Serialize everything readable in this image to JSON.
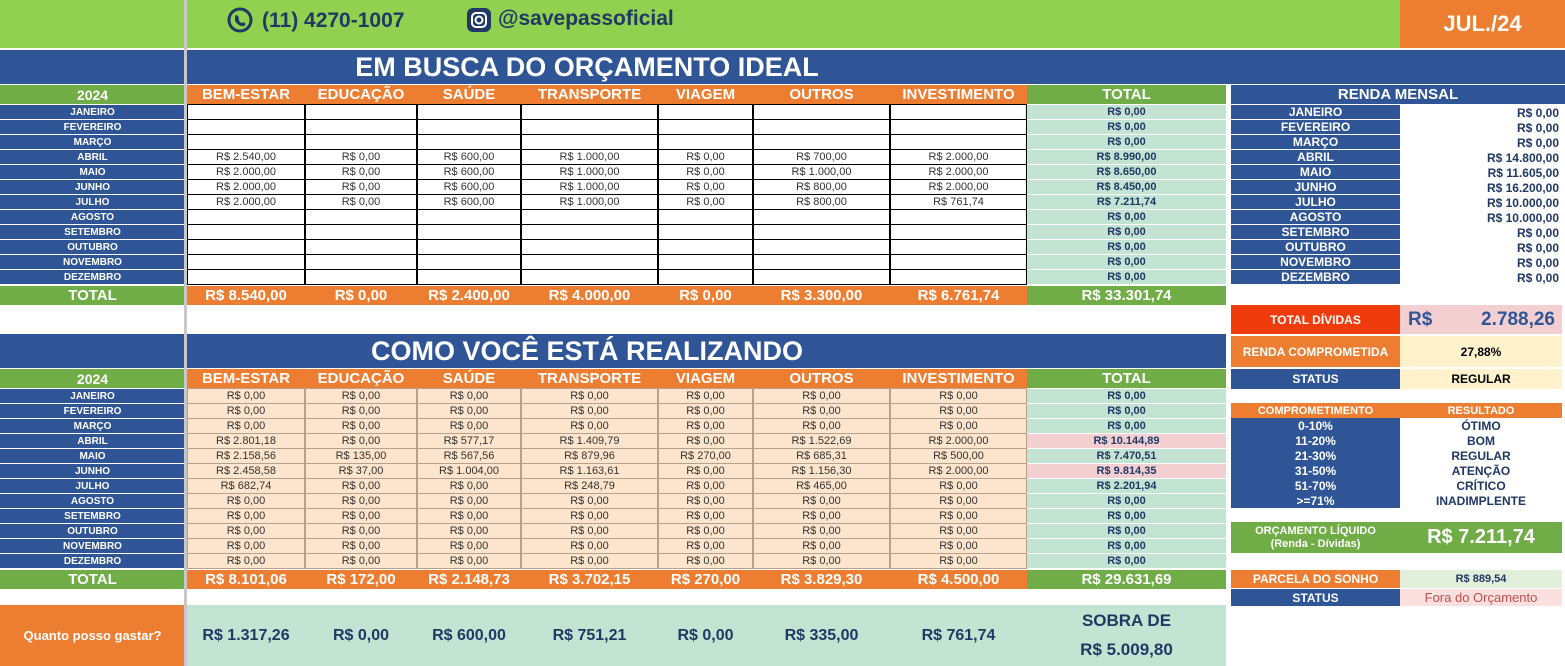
{
  "header": {
    "phone": "(11) 4270-1007",
    "instagram": "@savepassoficial",
    "period": "JUL./24"
  },
  "months": [
    "JANEIRO",
    "FEVEREIRO",
    "MARÇO",
    "ABRIL",
    "MAIO",
    "JUNHO",
    "JULHO",
    "AGOSTO",
    "SETEMBRO",
    "OUTUBRO",
    "NOVEMBRO",
    "DEZEMBRO"
  ],
  "categories": [
    "BEM-ESTAR",
    "EDUCAÇÃO",
    "SAÚDE",
    "TRANSPORTE",
    "VIAGEM",
    "OUTROS",
    "INVESTIMENTO"
  ],
  "year": "2024",
  "total_label": "TOTAL",
  "planned": {
    "title": "EM BUSCA DO ORÇAMENTO IDEAL",
    "rows": [
      {
        "values": [],
        "total": "R$ 0,00"
      },
      {
        "values": [],
        "total": "R$ 0,00"
      },
      {
        "values": [],
        "total": "R$ 0,00"
      },
      {
        "values": [
          "R$ 2.540,00",
          "R$ 0,00",
          "R$ 600,00",
          "R$ 1.000,00",
          "R$ 0,00",
          "R$ 700,00",
          "R$ 2.000,00"
        ],
        "total": "R$ 8.990,00"
      },
      {
        "values": [
          "R$ 2.000,00",
          "R$ 0,00",
          "R$ 600,00",
          "R$ 1.000,00",
          "R$ 0,00",
          "R$ 1.000,00",
          "R$ 2.000,00"
        ],
        "total": "R$ 8.650,00"
      },
      {
        "values": [
          "R$ 2.000,00",
          "R$ 0,00",
          "R$ 600,00",
          "R$ 1.000,00",
          "R$ 0,00",
          "R$ 800,00",
          "R$ 2.000,00"
        ],
        "total": "R$ 8.450,00"
      },
      {
        "values": [
          "R$ 2.000,00",
          "R$ 0,00",
          "R$ 600,00",
          "R$ 1.000,00",
          "R$ 0,00",
          "R$ 800,00",
          "R$ 761,74"
        ],
        "total": "R$ 7.211,74"
      },
      {
        "values": [],
        "total": "R$ 0,00"
      },
      {
        "values": [],
        "total": "R$ 0,00"
      },
      {
        "values": [],
        "total": "R$ 0,00"
      },
      {
        "values": [],
        "total": "R$ 0,00"
      },
      {
        "values": [],
        "total": "R$ 0,00"
      }
    ],
    "totals": [
      "R$ 8.540,00",
      "R$ 0,00",
      "R$ 2.400,00",
      "R$ 4.000,00",
      "R$ 0,00",
      "R$ 3.300,00",
      "R$ 6.761,74"
    ],
    "grand_total": "R$ 33.301,74"
  },
  "actual": {
    "title": "COMO VOCÊ ESTÁ REALIZANDO",
    "rows": [
      {
        "values": [
          "R$ 0,00",
          "R$ 0,00",
          "R$ 0,00",
          "R$ 0,00",
          "R$ 0,00",
          "R$ 0,00",
          "R$ 0,00"
        ],
        "total": "R$ 0,00"
      },
      {
        "values": [
          "R$ 0,00",
          "R$ 0,00",
          "R$ 0,00",
          "R$ 0,00",
          "R$ 0,00",
          "R$ 0,00",
          "R$ 0,00"
        ],
        "total": "R$ 0,00"
      },
      {
        "values": [
          "R$ 0,00",
          "R$ 0,00",
          "R$ 0,00",
          "R$ 0,00",
          "R$ 0,00",
          "R$ 0,00",
          "R$ 0,00"
        ],
        "total": "R$ 0,00"
      },
      {
        "values": [
          "R$ 2.801,18",
          "R$ 0,00",
          "R$ 577,17",
          "R$ 1.409,79",
          "R$ 0,00",
          "R$ 1.522,69",
          "R$ 2.000,00"
        ],
        "total": "R$ 10.144,89"
      },
      {
        "values": [
          "R$ 2.158,56",
          "R$ 135,00",
          "R$ 567,56",
          "R$ 879,96",
          "R$ 270,00",
          "R$ 685,31",
          "R$ 500,00"
        ],
        "total": "R$ 7.470,51"
      },
      {
        "values": [
          "R$ 2.458,58",
          "R$ 37,00",
          "R$ 1.004,00",
          "R$ 1.163,61",
          "R$ 0,00",
          "R$ 1.156,30",
          "R$ 2.000,00"
        ],
        "total": "R$ 9.814,35"
      },
      {
        "values": [
          "R$ 682,74",
          "R$ 0,00",
          "R$ 0,00",
          "R$ 248,79",
          "R$ 0,00",
          "R$ 465,00",
          "R$ 0,00"
        ],
        "total": "R$ 2.201,94"
      },
      {
        "values": [
          "R$ 0,00",
          "R$ 0,00",
          "R$ 0,00",
          "R$ 0,00",
          "R$ 0,00",
          "R$ 0,00",
          "R$ 0,00"
        ],
        "total": "R$ 0,00"
      },
      {
        "values": [
          "R$ 0,00",
          "R$ 0,00",
          "R$ 0,00",
          "R$ 0,00",
          "R$ 0,00",
          "R$ 0,00",
          "R$ 0,00"
        ],
        "total": "R$ 0,00"
      },
      {
        "values": [
          "R$ 0,00",
          "R$ 0,00",
          "R$ 0,00",
          "R$ 0,00",
          "R$ 0,00",
          "R$ 0,00",
          "R$ 0,00"
        ],
        "total": "R$ 0,00"
      },
      {
        "values": [
          "R$ 0,00",
          "R$ 0,00",
          "R$ 0,00",
          "R$ 0,00",
          "R$ 0,00",
          "R$ 0,00",
          "R$ 0,00"
        ],
        "total": "R$ 0,00"
      },
      {
        "values": [
          "R$ 0,00",
          "R$ 0,00",
          "R$ 0,00",
          "R$ 0,00",
          "R$ 0,00",
          "R$ 0,00",
          "R$ 0,00"
        ],
        "total": "R$ 0,00"
      }
    ],
    "totals": [
      "R$ 8.101,06",
      "R$ 172,00",
      "R$ 2.148,73",
      "R$ 3.702,15",
      "R$ 270,00",
      "R$ 3.829,30",
      "R$ 4.500,00"
    ],
    "grand_total": "R$ 29.631,69"
  },
  "spending": {
    "label": "Quanto posso gastar?",
    "values": [
      "R$ 1.317,26",
      "R$ 0,00",
      "R$ 600,00",
      "R$ 751,21",
      "R$ 0,00",
      "R$ 335,00",
      "R$ 761,74"
    ],
    "leftover_label": "SOBRA DE",
    "leftover": "R$ 5.009,80"
  },
  "income": {
    "title": "RENDA MENSAL",
    "values": [
      "R$ 0,00",
      "R$ 0,00",
      "R$ 0,00",
      "R$ 14.800,00",
      "R$ 11.605,00",
      "R$ 16.200,00",
      "R$ 10.000,00",
      "R$ 10.000,00",
      "R$ 0,00",
      "R$ 0,00",
      "R$ 0,00",
      "R$ 0,00"
    ]
  },
  "summary": {
    "debts_label": "TOTAL DÍVIDAS",
    "debts_currency": "R$",
    "debts_amount": "2.788,26",
    "committed_label": "RENDA COMPROMETIDA",
    "committed_value": "27,88%",
    "status_label": "STATUS",
    "status_value": "REGULAR"
  },
  "scale": {
    "header": [
      "COMPROMETIMENTO",
      "RESULTADO"
    ],
    "rows": [
      [
        "0-10%",
        "ÓTIMO"
      ],
      [
        "11-20%",
        "BOM"
      ],
      [
        "21-30%",
        "REGULAR"
      ],
      [
        "31-50%",
        "ATENÇÃO"
      ],
      [
        "51-70%",
        "CRÍTICO"
      ],
      [
        ">=71%",
        "INADIMPLENTE"
      ]
    ]
  },
  "net_budget": {
    "label": "ORÇAMENTO LÍQUIDO",
    "sublabel": "(Renda - Dívidas)",
    "value": "R$ 7.211,74"
  },
  "dream": {
    "label": "PARCELA DO SONHO",
    "value": "R$ 889,54",
    "status_label": "STATUS",
    "status_value": "Fora do Orçamento"
  }
}
